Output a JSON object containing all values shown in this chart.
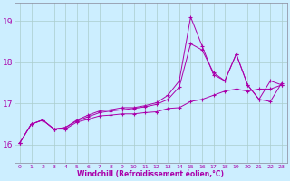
{
  "xlabel": "Windchill (Refroidissement éolien,°C)",
  "bg_color": "#cceeff",
  "line_color": "#aa00aa",
  "grid_color": "#aacccc",
  "ylim": [
    15.55,
    19.45
  ],
  "xlim": [
    -0.5,
    23.5
  ],
  "yticks": [
    16,
    17,
    18,
    19
  ],
  "xticks": [
    0,
    1,
    2,
    3,
    4,
    5,
    6,
    7,
    8,
    9,
    10,
    11,
    12,
    13,
    14,
    15,
    16,
    17,
    18,
    19,
    20,
    21,
    22,
    23
  ],
  "series1_x": [
    0,
    1,
    2,
    3,
    4,
    5,
    6,
    7,
    8,
    9,
    10,
    11,
    12,
    13,
    14,
    15,
    16,
    17,
    18,
    19,
    20,
    21,
    22,
    23
  ],
  "series1_y": [
    16.05,
    16.5,
    16.6,
    16.38,
    16.38,
    16.55,
    16.62,
    16.7,
    16.72,
    16.75,
    16.75,
    16.78,
    16.8,
    16.88,
    16.9,
    17.05,
    17.1,
    17.2,
    17.3,
    17.35,
    17.3,
    17.35,
    17.35,
    17.45
  ],
  "series2_x": [
    0,
    1,
    2,
    3,
    4,
    5,
    6,
    7,
    8,
    9,
    10,
    11,
    12,
    13,
    14,
    15,
    16,
    17,
    18,
    19,
    20,
    21,
    22,
    23
  ],
  "series2_y": [
    16.05,
    16.5,
    16.6,
    16.38,
    16.42,
    16.58,
    16.68,
    16.78,
    16.82,
    16.85,
    16.88,
    16.92,
    16.98,
    17.1,
    17.4,
    18.45,
    18.3,
    17.75,
    17.55,
    18.2,
    17.45,
    17.1,
    17.55,
    17.45
  ],
  "series3_x": [
    0,
    1,
    2,
    3,
    4,
    5,
    6,
    7,
    8,
    9,
    10,
    11,
    12,
    13,
    14,
    15,
    16,
    17,
    18,
    19,
    20,
    21,
    22,
    23
  ],
  "series3_y": [
    16.05,
    16.5,
    16.6,
    16.38,
    16.42,
    16.6,
    16.72,
    16.82,
    16.85,
    16.9,
    16.9,
    16.95,
    17.02,
    17.2,
    17.55,
    19.1,
    18.4,
    17.7,
    17.55,
    18.2,
    17.45,
    17.1,
    17.05,
    17.5
  ]
}
